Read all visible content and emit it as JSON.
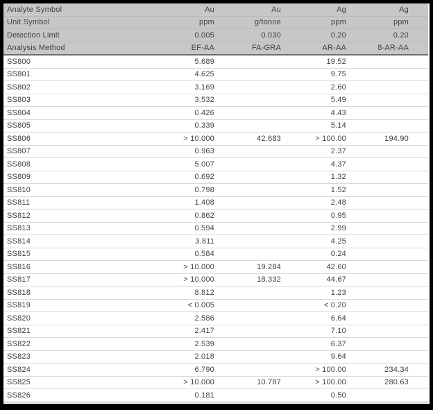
{
  "colors": {
    "header_bg": "#c7c7c7",
    "frame": "#000000",
    "row_line": "#d9d9d9",
    "header_line": "#6e6e6e",
    "text": "#3f3f3f"
  },
  "table": {
    "header_rows": [
      {
        "label": "Analyte Symbol",
        "values": [
          "Au",
          "Au",
          "Ag",
          "Ag"
        ]
      },
      {
        "label": "Unit Symbol",
        "values": [
          "ppm",
          "g/tonne",
          "ppm",
          "ppm"
        ]
      },
      {
        "label": "Detection Limit",
        "values": [
          "0.005",
          "0.030",
          "0.20",
          "0.20"
        ]
      },
      {
        "label": "Analysis Method",
        "values": [
          "EF-AA",
          "FA-GRA",
          "AR-AA",
          "8-AR-AA"
        ]
      }
    ],
    "rows": [
      {
        "sample": "SS800",
        "values": [
          "5.689",
          "",
          "19.52",
          ""
        ]
      },
      {
        "sample": "SS801",
        "values": [
          "4.625",
          "",
          "9.75",
          ""
        ]
      },
      {
        "sample": "SS802",
        "values": [
          "3.169",
          "",
          "2.60",
          ""
        ]
      },
      {
        "sample": "SS803",
        "values": [
          "3.532",
          "",
          "5.49",
          ""
        ]
      },
      {
        "sample": "SS804",
        "values": [
          "0.426",
          "",
          "4.43",
          ""
        ]
      },
      {
        "sample": "SS805",
        "values": [
          "0.339",
          "",
          "5.14",
          ""
        ]
      },
      {
        "sample": "SS806",
        "values": [
          "> 10.000",
          "42.683",
          "> 100.00",
          "194.90"
        ]
      },
      {
        "sample": "SS807",
        "values": [
          "0.963",
          "",
          "2.37",
          ""
        ]
      },
      {
        "sample": "SS808",
        "values": [
          "5.007",
          "",
          "4.37",
          ""
        ]
      },
      {
        "sample": "SS809",
        "values": [
          "0.692",
          "",
          "1.32",
          ""
        ]
      },
      {
        "sample": "SS810",
        "values": [
          "0.798",
          "",
          "1.52",
          ""
        ]
      },
      {
        "sample": "SS811",
        "values": [
          "1.408",
          "",
          "2.48",
          ""
        ]
      },
      {
        "sample": "SS812",
        "values": [
          "0.862",
          "",
          "0.95",
          ""
        ]
      },
      {
        "sample": "SS813",
        "values": [
          "0.594",
          "",
          "2.99",
          ""
        ]
      },
      {
        "sample": "SS814",
        "values": [
          "3.811",
          "",
          "4.25",
          ""
        ]
      },
      {
        "sample": "SS815",
        "values": [
          "0.584",
          "",
          "0.24",
          ""
        ]
      },
      {
        "sample": "SS816",
        "values": [
          "> 10.000",
          "19.284",
          "42.60",
          ""
        ]
      },
      {
        "sample": "SS817",
        "values": [
          "> 10.000",
          "18.332",
          "44.67",
          ""
        ]
      },
      {
        "sample": "SS818",
        "values": [
          "8.812",
          "",
          "1.23",
          ""
        ]
      },
      {
        "sample": "SS819",
        "values": [
          "< 0.005",
          "",
          "< 0.20",
          ""
        ]
      },
      {
        "sample": "SS820",
        "values": [
          "2.586",
          "",
          "6.64",
          ""
        ]
      },
      {
        "sample": "SS821",
        "values": [
          "2.417",
          "",
          "7.10",
          ""
        ]
      },
      {
        "sample": "SS822",
        "values": [
          "2.539",
          "",
          "6.37",
          ""
        ]
      },
      {
        "sample": "SS823",
        "values": [
          "2.018",
          "",
          "9.64",
          ""
        ]
      },
      {
        "sample": "SS824",
        "values": [
          "6.790",
          "",
          "> 100.00",
          "234.34"
        ]
      },
      {
        "sample": "SS825",
        "values": [
          "> 10.000",
          "10.787",
          "> 100.00",
          "280.63"
        ]
      },
      {
        "sample": "SS826",
        "values": [
          "0.181",
          "",
          "0.50",
          ""
        ]
      }
    ]
  }
}
